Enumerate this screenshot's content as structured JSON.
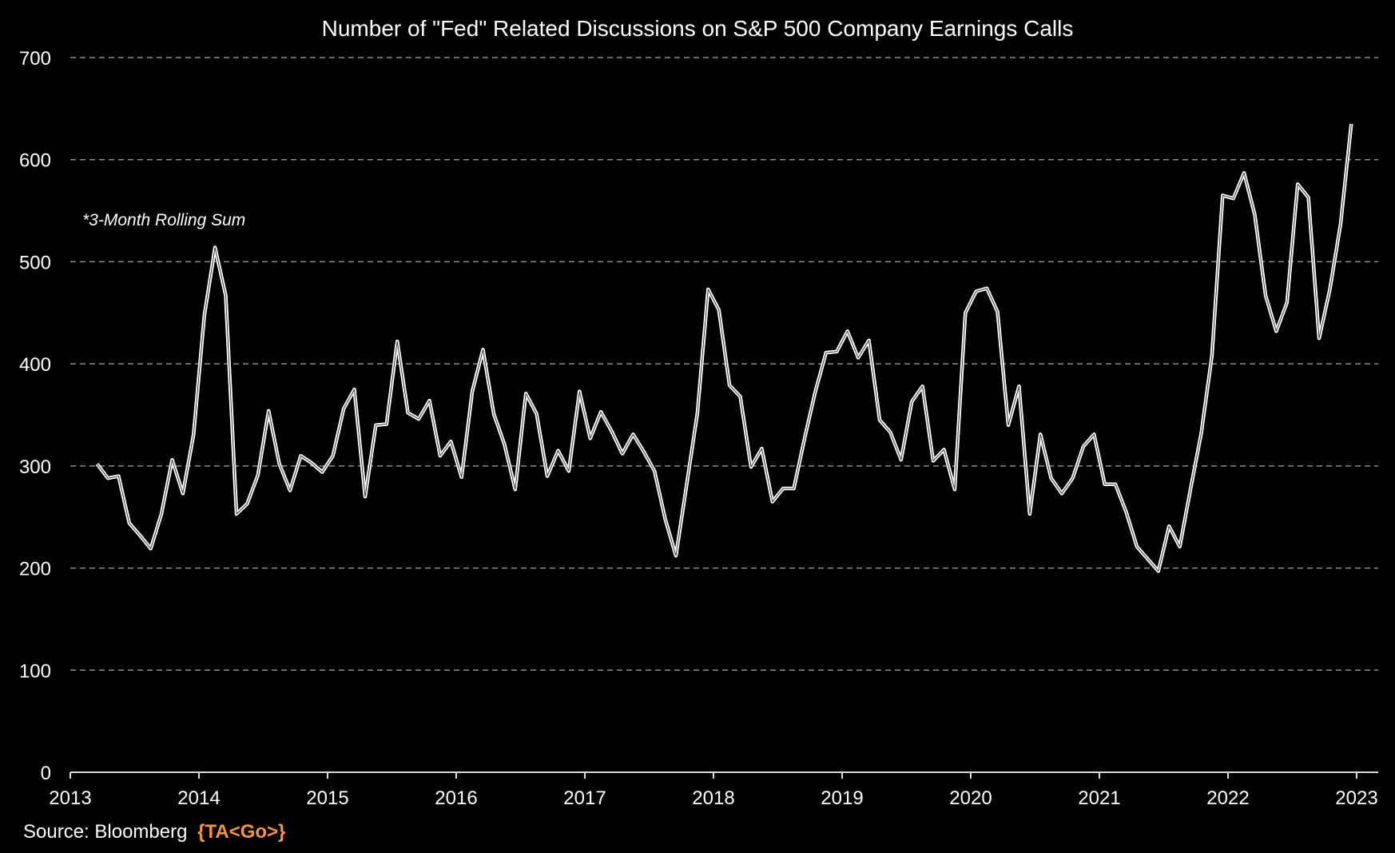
{
  "chart_data": {
    "type": "line",
    "title": "Number of \"Fed\" Related Discussions on S&P 500 Company Earnings Calls",
    "annotation": "*3-Month Rolling Sum",
    "source_label": "Source: Bloomberg",
    "source_tag": "{TA<Go>}",
    "xlabel": "",
    "ylabel": "",
    "ylim": [
      0,
      700
    ],
    "yticks": [
      "0",
      "100",
      "200",
      "300",
      "400",
      "500",
      "600",
      "700"
    ],
    "xlim": [
      2013,
      2023
    ],
    "xticks": [
      "2013",
      "2014",
      "2015",
      "2016",
      "2017",
      "2018",
      "2019",
      "2020",
      "2021",
      "2022",
      "2023"
    ],
    "grid": true,
    "frequency": "monthly",
    "start": "2013-03",
    "series": [
      {
        "name": "Fed related discussions (3-month rolling sum)",
        "color": "#ffffff",
        "values": [
          302,
          288,
          290,
          244,
          232,
          219,
          253,
          306,
          273,
          331,
          447,
          514,
          467,
          253,
          263,
          291,
          354,
          302,
          276,
          310,
          303,
          294,
          310,
          356,
          375,
          270,
          340,
          341,
          422,
          352,
          346,
          364,
          310,
          324,
          289,
          373,
          414,
          351,
          321,
          277,
          371,
          351,
          290,
          315,
          295,
          373,
          327,
          353,
          334,
          312,
          331,
          314,
          295,
          248,
          212,
          282,
          352,
          473,
          453,
          379,
          368,
          299,
          317,
          265,
          278,
          278,
          327,
          373,
          411,
          412,
          432,
          406,
          423,
          345,
          333,
          306,
          363,
          378,
          305,
          316,
          277,
          450,
          471,
          474,
          451,
          340,
          378,
          253,
          331,
          288,
          273,
          288,
          319,
          331,
          282,
          282,
          255,
          221,
          209,
          197,
          241,
          221,
          277,
          332,
          408,
          565,
          562,
          587,
          546,
          467,
          432,
          460,
          576,
          563,
          425,
          473,
          537,
          635
        ]
      }
    ],
    "colors": {
      "background": "#000000",
      "grid": "#8c8c8c",
      "accent": "#f7953b"
    }
  }
}
